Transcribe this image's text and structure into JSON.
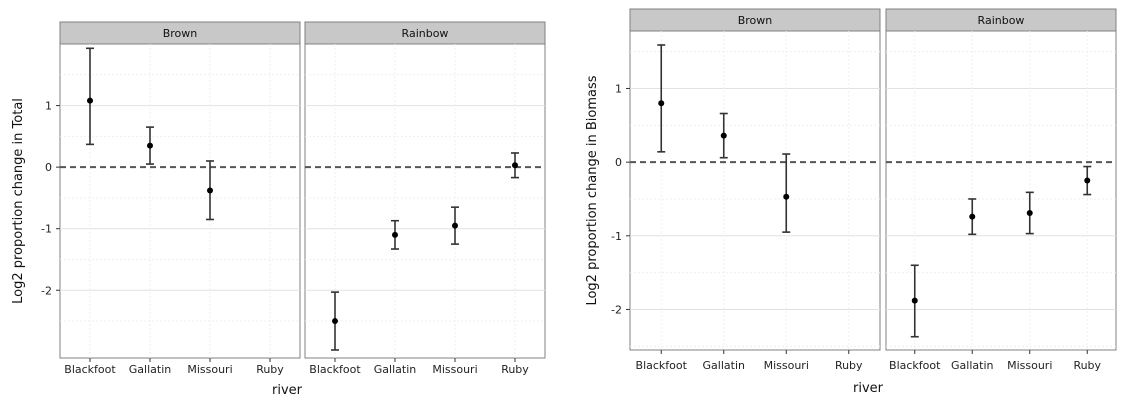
{
  "chart_data": [
    {
      "type": "scatter",
      "subtype": "point-with-error-bars",
      "ylabel": "Log2 proportion change in Total",
      "xlabel": "river",
      "ylim": [
        -3.1,
        2.0
      ],
      "yticks": [
        -2,
        -1,
        0,
        1
      ],
      "reference_line": 0,
      "grid": true,
      "categories": [
        "Blackfoot",
        "Gallatin",
        "Missouri",
        "Ruby"
      ],
      "facets": [
        {
          "name": "Brown",
          "points": [
            {
              "x": "Blackfoot",
              "y": 1.08,
              "ymin": 0.37,
              "ymax": 1.93
            },
            {
              "x": "Gallatin",
              "y": 0.35,
              "ymin": 0.05,
              "ymax": 0.65
            },
            {
              "x": "Missouri",
              "y": -0.38,
              "ymin": -0.85,
              "ymax": 0.1
            }
          ]
        },
        {
          "name": "Rainbow",
          "points": [
            {
              "x": "Blackfoot",
              "y": -2.5,
              "ymin": -2.97,
              "ymax": -2.03
            },
            {
              "x": "Gallatin",
              "y": -1.1,
              "ymin": -1.33,
              "ymax": -0.87
            },
            {
              "x": "Missouri",
              "y": -0.95,
              "ymin": -1.25,
              "ymax": -0.65
            },
            {
              "x": "Ruby",
              "y": 0.03,
              "ymin": -0.17,
              "ymax": 0.23
            }
          ]
        }
      ]
    },
    {
      "type": "scatter",
      "subtype": "point-with-error-bars",
      "ylabel": "Log2 proportion change in Biomass",
      "xlabel": "river",
      "ylim": [
        -2.55,
        1.78
      ],
      "yticks": [
        -2,
        -1,
        0,
        1
      ],
      "reference_line": 0,
      "grid": true,
      "categories": [
        "Blackfoot",
        "Gallatin",
        "Missouri",
        "Ruby"
      ],
      "facets": [
        {
          "name": "Brown",
          "points": [
            {
              "x": "Blackfoot",
              "y": 0.8,
              "ymin": 0.14,
              "ymax": 1.59
            },
            {
              "x": "Gallatin",
              "y": 0.36,
              "ymin": 0.06,
              "ymax": 0.66
            },
            {
              "x": "Missouri",
              "y": -0.47,
              "ymin": -0.95,
              "ymax": 0.11
            }
          ]
        },
        {
          "name": "Rainbow",
          "points": [
            {
              "x": "Blackfoot",
              "y": -1.88,
              "ymin": -2.37,
              "ymax": -1.4
            },
            {
              "x": "Gallatin",
              "y": -0.74,
              "ymin": -0.98,
              "ymax": -0.5
            },
            {
              "x": "Missouri",
              "y": -0.69,
              "ymin": -0.97,
              "ymax": -0.41
            },
            {
              "x": "Ruby",
              "y": -0.25,
              "ymin": -0.44,
              "ymax": -0.06
            }
          ]
        }
      ]
    }
  ]
}
